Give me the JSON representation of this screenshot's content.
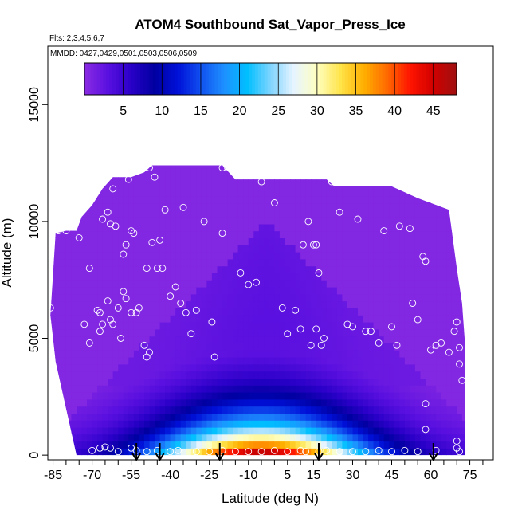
{
  "chart_data": {
    "type": "heatmap",
    "title": "ATOM4 Southbound Sat_Vapor_Press_Ice",
    "flights_label": "Flts: 2,3,4,5,6,7",
    "dates_label": "MMDD: 0427,0429,0501,0503,0506,0509",
    "xlabel": "Latitude (deg N)",
    "ylabel": "Altitude (m)",
    "xlim": [
      -87,
      84
    ],
    "ylim": [
      -200,
      17500
    ],
    "x_ticks": [
      -85,
      -70,
      -55,
      -40,
      -25,
      -10,
      5,
      15,
      30,
      45,
      60,
      75
    ],
    "y_ticks": [
      0,
      5000,
      10000,
      15000
    ],
    "colorbar": {
      "range": [
        0,
        48
      ],
      "ticks": [
        5,
        10,
        15,
        20,
        25,
        30,
        35,
        40,
        45
      ],
      "colors": [
        "#8a2be2",
        "#5a10e0",
        "#2a00c8",
        "#0000a0",
        "#0010d8",
        "#1050f0",
        "#1e90ff",
        "#00bfff",
        "#7fd4ff",
        "#e6f4ff",
        "#ffffc0",
        "#ffe44a",
        "#ffb000",
        "#ff6a00",
        "#ff1400",
        "#d00000",
        "#a01010"
      ]
    },
    "field": {
      "boundary_top": [
        [
          -86,
          6000
        ],
        [
          -84,
          9500
        ],
        [
          -80,
          9600
        ],
        [
          -76,
          9600
        ],
        [
          -74,
          10200
        ],
        [
          -70,
          10700
        ],
        [
          -66,
          11400
        ],
        [
          -62,
          11900
        ],
        [
          -55,
          11900
        ],
        [
          -50,
          12100
        ],
        [
          -47,
          12400
        ],
        [
          -20,
          12400
        ],
        [
          -15,
          11800
        ],
        [
          0,
          11800
        ],
        [
          20,
          11800
        ],
        [
          23,
          11500
        ],
        [
          45,
          11500
        ],
        [
          55,
          11000
        ],
        [
          67,
          10500
        ],
        [
          70,
          8000
        ],
        [
          72,
          6500
        ],
        [
          73,
          5000
        ],
        [
          73,
          0
        ]
      ],
      "boundary_bottom": [
        [
          73,
          0
        ],
        [
          -76,
          0
        ],
        [
          -80,
          2000
        ],
        [
          -84,
          4000
        ],
        [
          -86,
          6000
        ]
      ],
      "surface_max_lat": -5,
      "surface_max_value": 46,
      "upper_value": 0.5,
      "tropopause_peak_alt": 10000
    },
    "sample_points": [
      [
        -86,
        6300
      ],
      [
        -83,
        9600
      ],
      [
        -80,
        9600
      ],
      [
        -75,
        9300
      ],
      [
        -73,
        5600
      ],
      [
        -71,
        4800
      ],
      [
        -67,
        5300
      ],
      [
        -66,
        10100
      ],
      [
        -64,
        10400
      ],
      [
        -63,
        9900
      ],
      [
        -62,
        11400
      ],
      [
        -61,
        9800
      ],
      [
        -58,
        8600
      ],
      [
        -57,
        9000
      ],
      [
        -56,
        11800
      ],
      [
        -55,
        9600
      ],
      [
        -54,
        9500
      ],
      [
        -71,
        8000
      ],
      [
        -68,
        6200
      ],
      [
        -67,
        6100
      ],
      [
        -66,
        5600
      ],
      [
        -64,
        6600
      ],
      [
        -63,
        5800
      ],
      [
        -62,
        5600
      ],
      [
        -60,
        6300
      ],
      [
        -59,
        5000
      ],
      [
        -58,
        7000
      ],
      [
        -57,
        6700
      ],
      [
        -55,
        6100
      ],
      [
        -53,
        6100
      ],
      [
        -52,
        6300
      ],
      [
        -50,
        4700
      ],
      [
        -49,
        4200
      ],
      [
        -48,
        4400
      ],
      [
        -49,
        8000
      ],
      [
        -47,
        9100
      ],
      [
        -45,
        8000
      ],
      [
        -44,
        9200
      ],
      [
        -43,
        8000
      ],
      [
        -42,
        10500
      ],
      [
        -40,
        6800
      ],
      [
        -38,
        7200
      ],
      [
        -36,
        6500
      ],
      [
        -34,
        6100
      ],
      [
        -32,
        5200
      ],
      [
        -30,
        6200
      ],
      [
        -27,
        10000
      ],
      [
        -24,
        5700
      ],
      [
        -23,
        4200
      ],
      [
        -20,
        9500
      ],
      [
        -48,
        12300
      ],
      [
        -46,
        11900
      ],
      [
        -35,
        10600
      ],
      [
        -20,
        12300
      ],
      [
        -18,
        12300
      ],
      [
        -13,
        7800
      ],
      [
        -10,
        7300
      ],
      [
        -7,
        7400
      ],
      [
        -5,
        11700
      ],
      [
        0,
        10800
      ],
      [
        3,
        6300
      ],
      [
        5,
        5200
      ],
      [
        8,
        6200
      ],
      [
        10,
        5400
      ],
      [
        11,
        9000
      ],
      [
        14,
        4700
      ],
      [
        16,
        5400
      ],
      [
        13,
        10000
      ],
      [
        15,
        9000
      ],
      [
        16,
        9000
      ],
      [
        17,
        7800
      ],
      [
        18,
        4700
      ],
      [
        19,
        5000
      ],
      [
        22,
        11700
      ],
      [
        25,
        10400
      ],
      [
        28,
        5600
      ],
      [
        30,
        5500
      ],
      [
        32,
        10100
      ],
      [
        35,
        5300
      ],
      [
        37,
        5300
      ],
      [
        40,
        4800
      ],
      [
        42,
        9600
      ],
      [
        45,
        5500
      ],
      [
        47,
        4700
      ],
      [
        48,
        9800
      ],
      [
        52,
        9700
      ],
      [
        53,
        6500
      ],
      [
        55,
        5800
      ],
      [
        57,
        8500
      ],
      [
        58,
        8300
      ],
      [
        60,
        4500
      ],
      [
        62,
        4700
      ],
      [
        64,
        4800
      ],
      [
        67,
        4400
      ],
      [
        69,
        5300
      ],
      [
        70,
        5700
      ],
      [
        71,
        3900
      ],
      [
        72,
        3200
      ],
      [
        71,
        4600
      ],
      [
        -79,
        150
      ],
      [
        -70,
        200
      ],
      [
        -67,
        300
      ],
      [
        -65,
        350
      ],
      [
        -63,
        300
      ],
      [
        -60,
        150
      ],
      [
        -55,
        300
      ],
      [
        -53,
        200
      ],
      [
        -49,
        150
      ],
      [
        -45,
        200
      ],
      [
        -40,
        150
      ],
      [
        -37,
        200
      ],
      [
        -30,
        150
      ],
      [
        -25,
        150
      ],
      [
        -20,
        200
      ],
      [
        -15,
        150
      ],
      [
        -10,
        150
      ],
      [
        -5,
        150
      ],
      [
        0,
        200
      ],
      [
        5,
        150
      ],
      [
        10,
        200
      ],
      [
        12,
        150
      ],
      [
        17,
        150
      ],
      [
        20,
        200
      ],
      [
        25,
        150
      ],
      [
        30,
        150
      ],
      [
        35,
        150
      ],
      [
        40,
        200
      ],
      [
        45,
        150
      ],
      [
        50,
        200
      ],
      [
        55,
        150
      ],
      [
        62,
        200
      ],
      [
        70,
        300
      ],
      [
        70,
        600
      ],
      [
        71,
        150
      ],
      [
        58,
        1100
      ],
      [
        58,
        2200
      ]
    ],
    "arrows_lat": [
      -53,
      -44,
      -21,
      17,
      61
    ]
  }
}
